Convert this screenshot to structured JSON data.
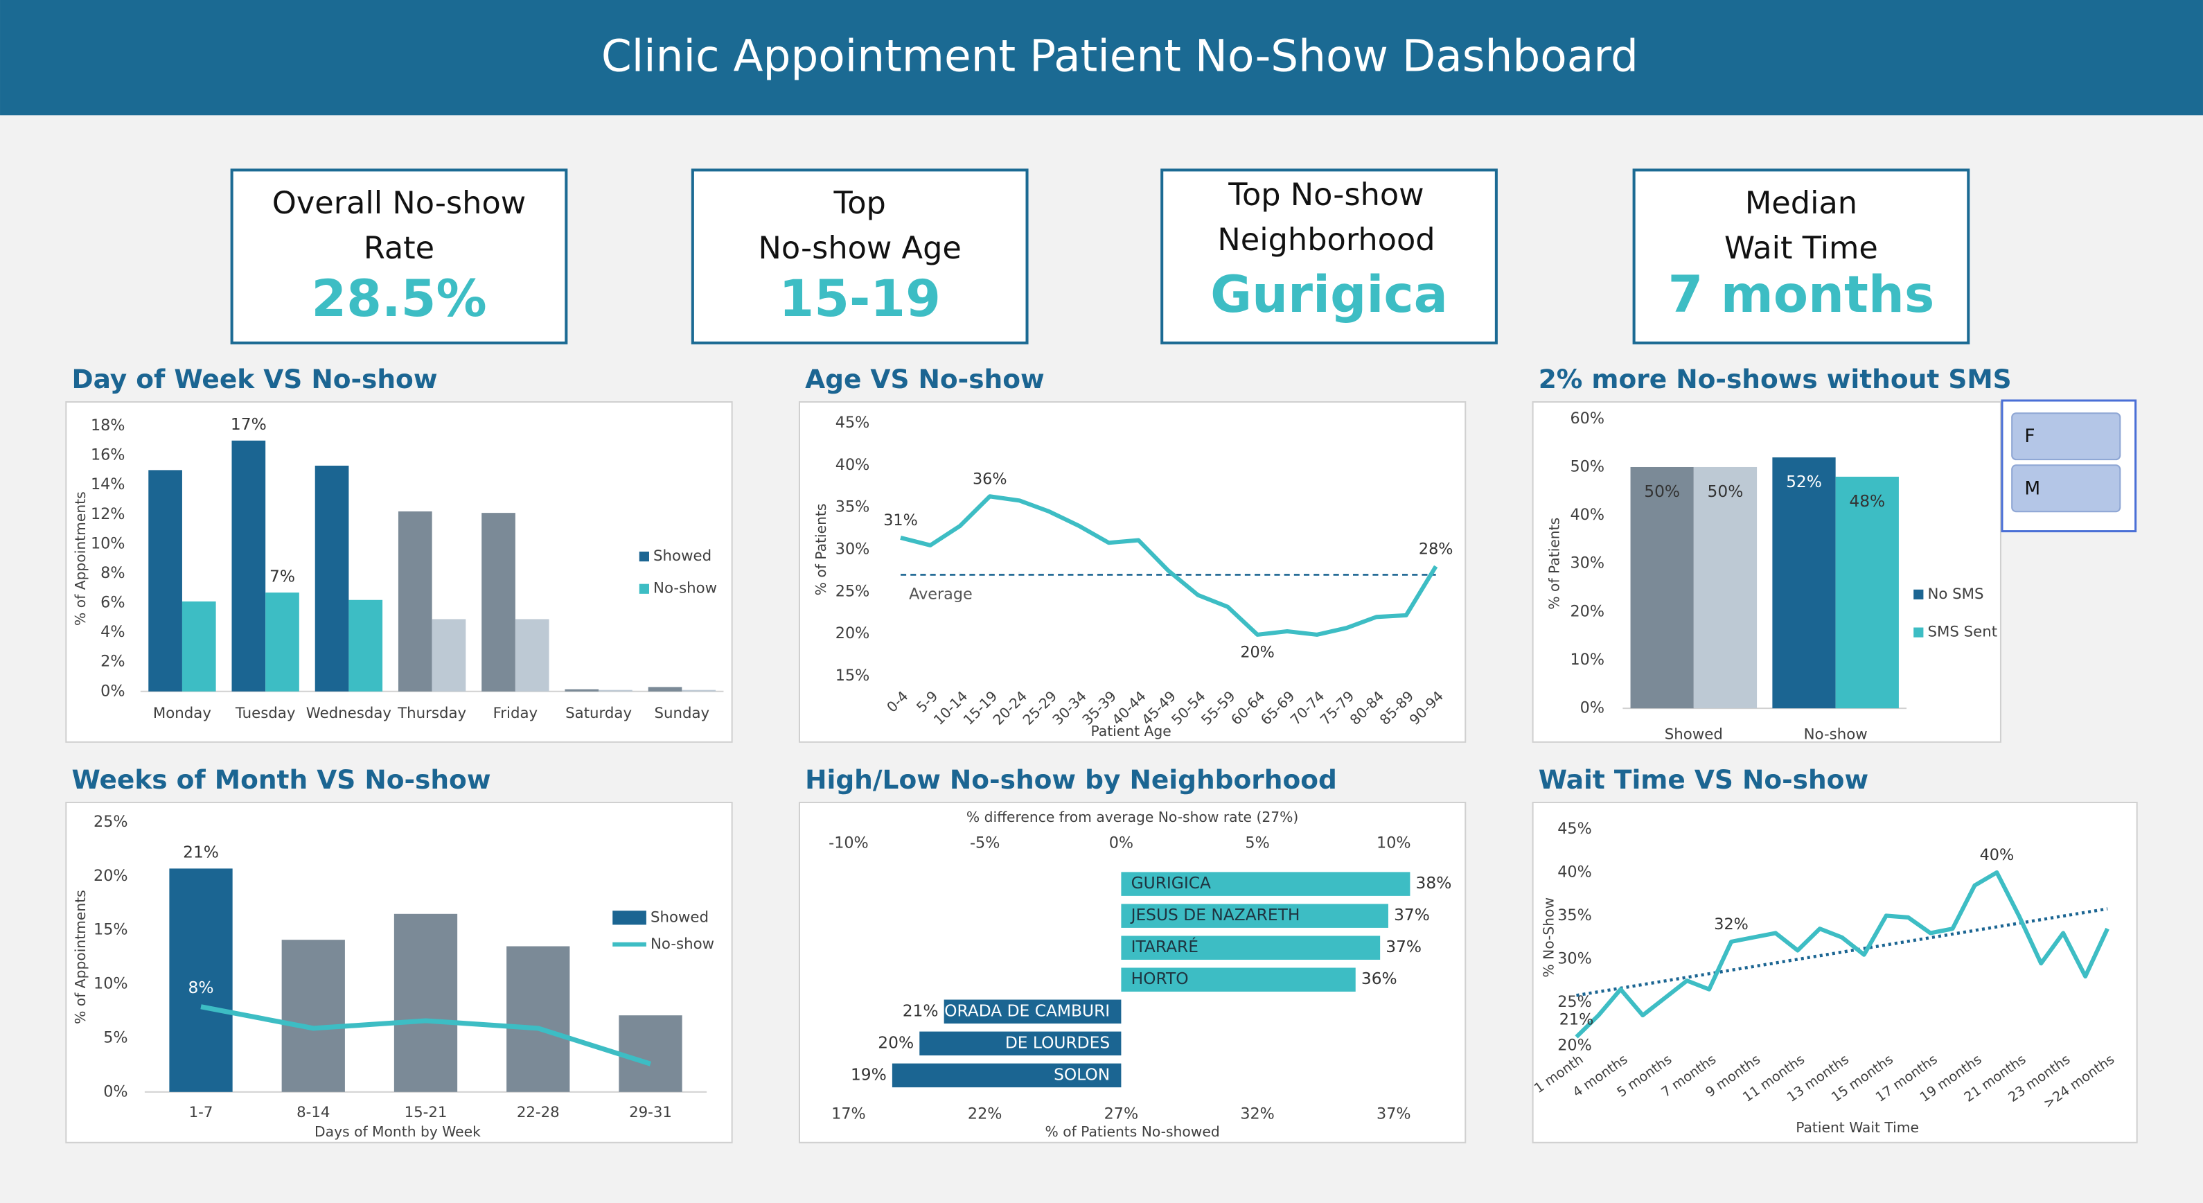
{
  "header": {
    "title": "Clinic Appointment Patient No-Show Dashboard"
  },
  "kpis": [
    {
      "label": [
        "Overall No-show",
        "Rate"
      ],
      "value": "28.5%"
    },
    {
      "label": [
        "Top",
        "No-show Age"
      ],
      "value": "15-19"
    },
    {
      "label": [
        "Top No-show",
        "Neighborhood"
      ],
      "value": "Gurigica"
    },
    {
      "label": [
        "Median",
        "Wait Time"
      ],
      "value": "7 months"
    }
  ],
  "slicer": {
    "items": [
      "F",
      "M"
    ]
  },
  "chart_data": [
    {
      "type": "bar",
      "title": "Day of Week VS No-show",
      "y_label": "% of Appointments",
      "categories": [
        "Monday",
        "Tuesday",
        "Wednesday",
        "Thursday",
        "Friday",
        "Saturday",
        "Sunday"
      ],
      "series": [
        {
          "name": "Showed",
          "color": "#1b6592",
          "colors": [
            "#1b6592",
            "#1b6592",
            "#1b6592",
            "#7b8a97",
            "#7b8a97",
            "#7b8a97",
            "#7b8a97"
          ],
          "values": [
            15.0,
            17.0,
            15.3,
            12.2,
            12.1,
            0.15,
            0.3
          ],
          "value_labels": [
            null,
            "17%",
            null,
            null,
            null,
            null,
            null
          ]
        },
        {
          "name": "No-show",
          "color": "#3dbdc4",
          "colors": [
            "#3dbdc4",
            "#3dbdc4",
            "#3dbdc4",
            "#bdc9d4",
            "#bdc9d4",
            "#bdc9d4",
            "#bdc9d4"
          ],
          "values": [
            6.1,
            6.7,
            6.2,
            4.9,
            4.9,
            0.1,
            0.1
          ],
          "value_labels": [
            null,
            "7%",
            null,
            null,
            null,
            null,
            null
          ]
        }
      ],
      "ylim": [
        0,
        18
      ],
      "yticks": [
        {
          "value": 0,
          "label": "0%"
        },
        {
          "value": 2,
          "label": "2%"
        },
        {
          "value": 4,
          "label": "4%"
        },
        {
          "value": 6,
          "label": "6%"
        },
        {
          "value": 8,
          "label": "8%"
        },
        {
          "value": 10,
          "label": "10%"
        },
        {
          "value": 12,
          "label": "12%"
        },
        {
          "value": 14,
          "label": "14%"
        },
        {
          "value": 16,
          "label": "16%"
        },
        {
          "value": 18,
          "label": "18%"
        }
      ],
      "legend": "right"
    },
    {
      "type": "line",
      "title": "Age VS No-show",
      "x_label": "Patient Age",
      "y_label": "% of Patients",
      "categories": [
        "0-4",
        "5-9",
        "10-14",
        "15-19",
        "20-24",
        "25-29",
        "30-34",
        "35-39",
        "40-44",
        "45-49",
        "50-54",
        "55-59",
        "60-64",
        "65-69",
        "70-74",
        "75-79",
        "80-84",
        "85-89",
        "90-94"
      ],
      "color": "#3dbdc4",
      "values": [
        31.4,
        30.5,
        32.8,
        36.3,
        35.8,
        34.5,
        32.8,
        30.8,
        31.1,
        27.5,
        24.6,
        23.2,
        19.9,
        20.3,
        19.9,
        20.7,
        22.0,
        22.2,
        28.0
      ],
      "value_labels": [
        "31%",
        null,
        null,
        "36%",
        null,
        null,
        null,
        null,
        null,
        null,
        null,
        null,
        "20%",
        null,
        null,
        null,
        null,
        null,
        "28%"
      ],
      "reference": {
        "value": 27,
        "label": "Average"
      },
      "ylim": [
        15,
        45
      ],
      "yticks": [
        {
          "value": 15,
          "label": "15%"
        },
        {
          "value": 20,
          "label": "20%"
        },
        {
          "value": 25,
          "label": "25%"
        },
        {
          "value": 30,
          "label": "30%"
        },
        {
          "value": 35,
          "label": "35%"
        },
        {
          "value": 40,
          "label": "40%"
        },
        {
          "value": 45,
          "label": "45%"
        }
      ]
    },
    {
      "type": "bar",
      "title": "2% more No-shows without SMS",
      "y_label": "% of Patients",
      "categories": [
        "Showed",
        "No-show"
      ],
      "series": [
        {
          "name": "No SMS",
          "color": "#1b6592",
          "colors": [
            "#7b8a97",
            "#1b6592"
          ],
          "values": [
            50,
            52
          ],
          "value_labels": [
            "50%",
            "52%"
          ]
        },
        {
          "name": "SMS Sent",
          "color": "#3dbdc4",
          "colors": [
            "#bdc9d4",
            "#3dbdc4"
          ],
          "values": [
            50,
            48
          ],
          "value_labels": [
            "50%",
            "48%"
          ]
        }
      ],
      "ylim": [
        0,
        60
      ],
      "yticks": [
        {
          "value": 0,
          "label": "0%"
        },
        {
          "value": 10,
          "label": "10%"
        },
        {
          "value": 20,
          "label": "20%"
        },
        {
          "value": 30,
          "label": "30%"
        },
        {
          "value": 40,
          "label": "40%"
        },
        {
          "value": 50,
          "label": "50%"
        },
        {
          "value": 60,
          "label": "60%"
        }
      ],
      "legend": "right"
    },
    {
      "type": "bar",
      "title": "Weeks of Month VS No-show",
      "x_label": "Days of Month by Week",
      "y_label": "% of Appointments",
      "categories": [
        "1-7",
        "8-14",
        "15-21",
        "22-28",
        "29-31"
      ],
      "series": [
        {
          "name": "Showed",
          "color": "#1b6592",
          "colors": [
            "#1b6592",
            "#7b8a97",
            "#7b8a97",
            "#7b8a97",
            "#7b8a97"
          ],
          "values": [
            20.7,
            14.1,
            16.5,
            13.5,
            7.1
          ],
          "value_labels": [
            "21%",
            null,
            null,
            null,
            null
          ]
        },
        {
          "name": "No-show",
          "kind": "line",
          "color": "#3dbdc4",
          "values": [
            7.9,
            5.9,
            6.6,
            5.9,
            2.6
          ],
          "value_labels": [
            "8%",
            null,
            null,
            null,
            null
          ]
        }
      ],
      "ylim": [
        0,
        25
      ],
      "yticks": [
        {
          "value": 0,
          "label": "0%"
        },
        {
          "value": 5,
          "label": "5%"
        },
        {
          "value": 10,
          "label": "10%"
        },
        {
          "value": 15,
          "label": "15%"
        },
        {
          "value": 20,
          "label": "20%"
        },
        {
          "value": 25,
          "label": "25%"
        }
      ],
      "legend": "right"
    },
    {
      "type": "hbar",
      "title": "High/Low No-show by Neighborhood",
      "x_label": "% of Patients No-showed",
      "x2_label": "% difference from average No-show rate (27%)",
      "categories": [
        "GURIGICA",
        "JESUS DE NAZARETH",
        "ITARARÉ",
        "HORTO",
        "MORADA DE CAMBURI",
        "DE LOURDES",
        "SOLON"
      ],
      "values": [
        37.6,
        36.8,
        36.5,
        35.6,
        20.5,
        19.6,
        18.6
      ],
      "value_labels": [
        "38%",
        "37%",
        "37%",
        "36%",
        "21%",
        "20%",
        "19%"
      ],
      "colors": [
        "#3dbdc4",
        "#3dbdc4",
        "#3dbdc4",
        "#3dbdc4",
        "#1b6592",
        "#1b6592",
        "#1b6592"
      ],
      "baseline": 27,
      "xlim": [
        17,
        39.5
      ],
      "xticks": [
        {
          "value": 17,
          "label": "17%"
        },
        {
          "value": 22,
          "label": "22%"
        },
        {
          "value": 27,
          "label": "27%"
        },
        {
          "value": 32,
          "label": "32%"
        },
        {
          "value": 37,
          "label": "37%"
        }
      ],
      "x2lim": [
        -10,
        12.5
      ],
      "x2ticks": [
        {
          "value": -10,
          "label": "-10%"
        },
        {
          "value": -5,
          "label": "-5%"
        },
        {
          "value": 0,
          "label": "0%"
        },
        {
          "value": 5,
          "label": "5%"
        },
        {
          "value": 10,
          "label": "10%"
        }
      ]
    },
    {
      "type": "line",
      "title": "Wait Time VS No-show",
      "x_label": "Patient Wait Time",
      "y_label": "% No-Show",
      "categories": [
        "1 month",
        null,
        "4 months",
        null,
        "5 months",
        null,
        "7 months",
        null,
        "9 months",
        null,
        "11 months",
        null,
        "13 months",
        null,
        "15 months",
        null,
        "17 months",
        null,
        "19 months",
        null,
        "21 months",
        null,
        "23 months",
        null,
        ">24 months"
      ],
      "color": "#3dbdc4",
      "values": [
        21,
        23.5,
        26.5,
        23.5,
        25.5,
        27.5,
        26.5,
        32,
        32.5,
        33,
        31,
        33.5,
        32.5,
        30.5,
        35,
        34.8,
        33,
        33.5,
        38.5,
        40,
        35,
        29.5,
        33,
        28,
        33.5
      ],
      "value_labels": [
        "21%",
        null,
        null,
        null,
        null,
        null,
        null,
        "32%",
        null,
        null,
        null,
        null,
        null,
        null,
        null,
        null,
        null,
        null,
        null,
        "40%",
        null,
        null,
        null,
        null,
        null
      ],
      "trendline": {
        "color": "#1b6592",
        "values": [
          25.8,
          35.8
        ]
      },
      "ylim": [
        20,
        45
      ],
      "yticks": [
        {
          "value": 20,
          "label": "20%"
        },
        {
          "value": 25,
          "label": "25%"
        },
        {
          "value": 30,
          "label": "30%"
        },
        {
          "value": 35,
          "label": "35%"
        },
        {
          "value": 40,
          "label": "40%"
        },
        {
          "value": 45,
          "label": "45%"
        }
      ]
    }
  ]
}
